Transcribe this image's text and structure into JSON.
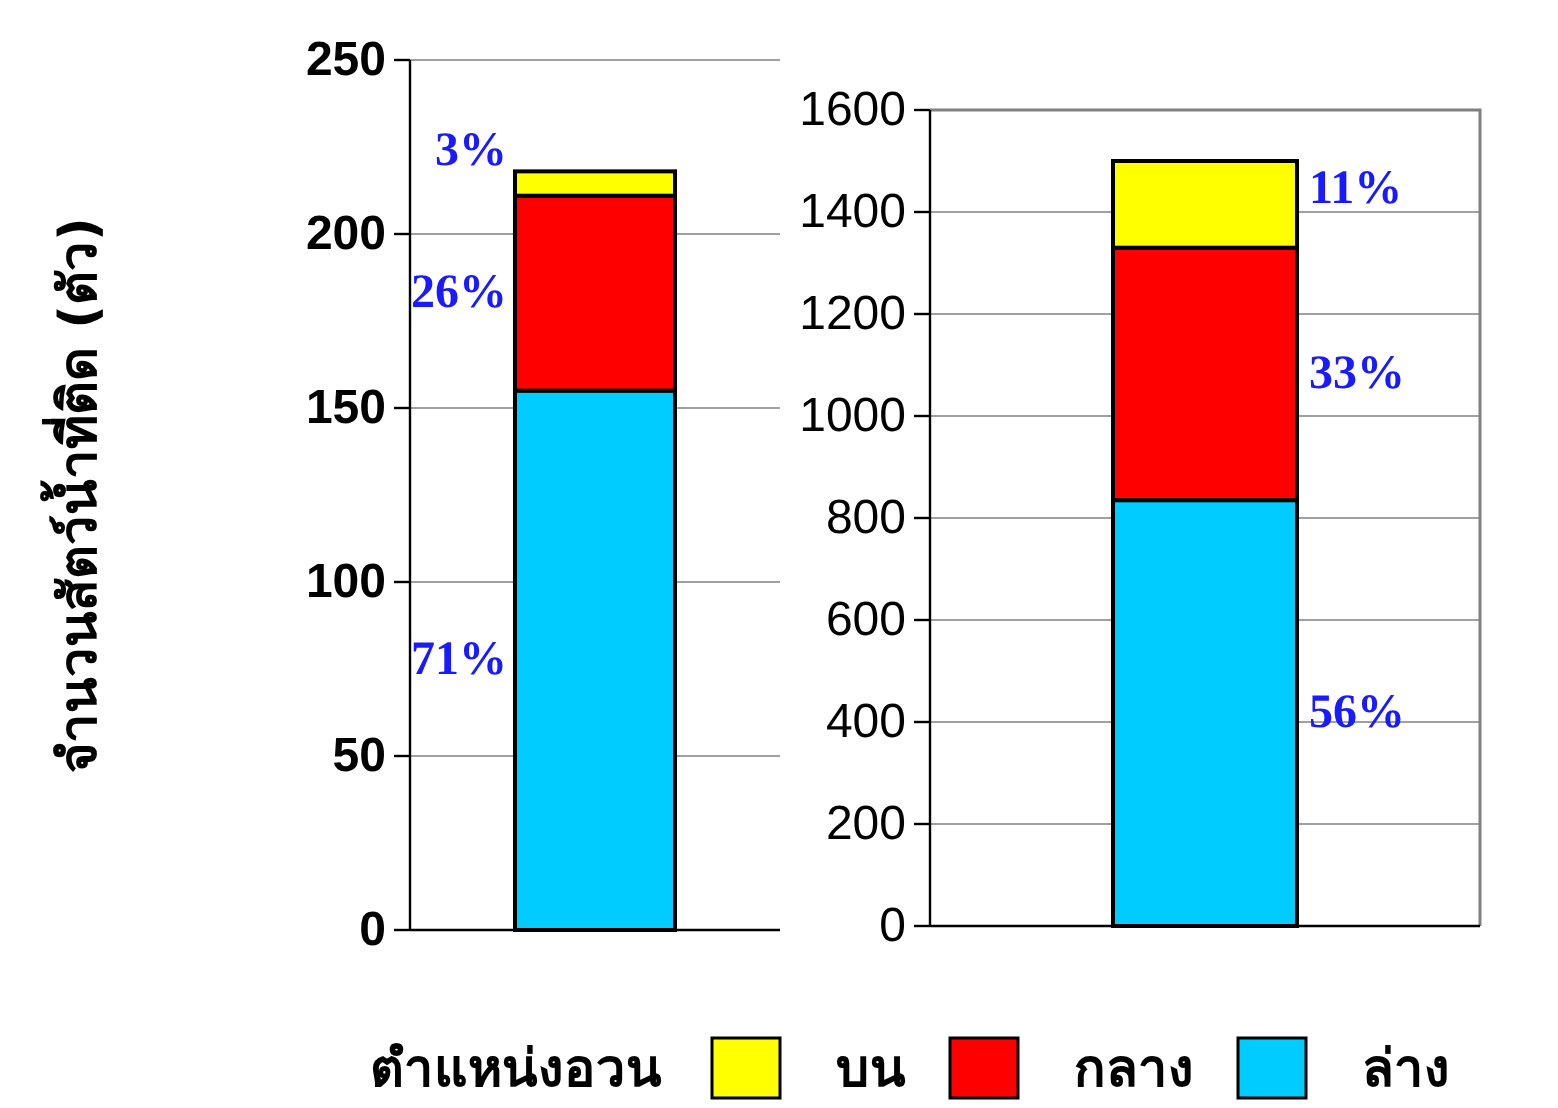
{
  "chart_data": [
    {
      "type": "bar",
      "stacked": true,
      "categories": [
        null
      ],
      "ylabel": "จำนวนสัตว์น้ำที่ติด (ตัว)",
      "ylim": [
        0,
        250
      ],
      "yticks": [
        0,
        50,
        100,
        150,
        200,
        250
      ],
      "grid": "y",
      "legend": "bottom",
      "legend_title": "ตำแหน่งอวน",
      "series": [
        {
          "name": "ล่าง",
          "color": "#00ccff",
          "values": [
            155
          ]
        },
        {
          "name": "กลาง",
          "color": "#ff0000",
          "values": [
            56
          ]
        },
        {
          "name": "บน",
          "color": "#ffff00",
          "values": [
            7
          ]
        }
      ],
      "annotations": [
        "71%",
        "26%",
        "3%"
      ]
    },
    {
      "type": "bar",
      "stacked": true,
      "categories": [
        null
      ],
      "ylim": [
        0,
        1600
      ],
      "yticks": [
        0,
        200,
        400,
        600,
        800,
        1000,
        1200,
        1400,
        1600
      ],
      "grid": "y",
      "series": [
        {
          "color": "#00ccff",
          "values": [
            835
          ]
        },
        {
          "color": "#ff0000",
          "values": [
            495
          ]
        },
        {
          "color": "#ffff00",
          "values": [
            170
          ]
        }
      ],
      "annotations": [
        "56%",
        "33%",
        "11%"
      ]
    }
  ]
}
